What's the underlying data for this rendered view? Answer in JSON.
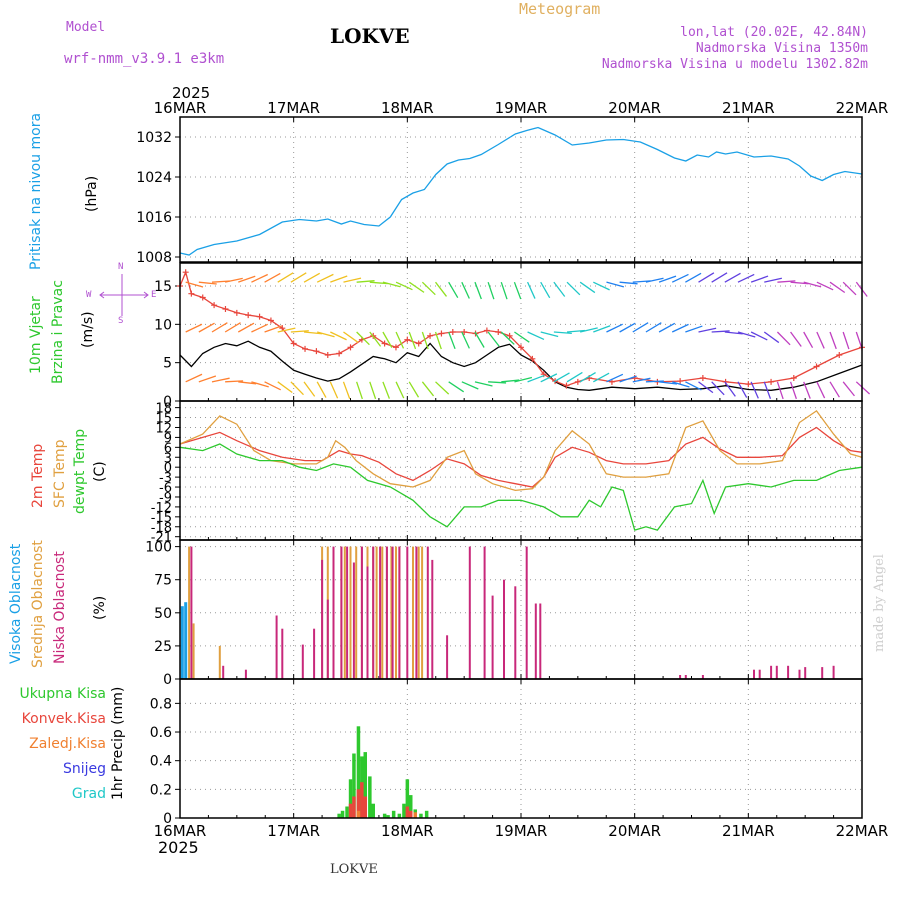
{
  "header": {
    "model_label": "Model",
    "model_name": "wrf-nmm_v3.9.1 e3km",
    "station": "LOKVE",
    "meteogram_label": "Meteogram",
    "coords": "lon,lat (20.02E, 42.84N)",
    "altitude": "Nadmorska Visina 1350m",
    "model_altitude": "Nadmorska Visina u modelu 1302.82m",
    "year_top": "2025",
    "year_bottom": "2025",
    "footer_station": "LOKVE",
    "credit": "made by Angel"
  },
  "colors": {
    "pressure": "#1aa0e6",
    "wind_speed": "#000000",
    "wind_gust": "#e8463c",
    "temp2m": "#e8463c",
    "sfc_temp": "#e0a040",
    "dewpt": "#2ec82e",
    "cloud_high": "#1aa0e6",
    "cloud_mid": "#e0a040",
    "cloud_low": "#c8287a",
    "precip_total": "#2ec82e",
    "precip_conv": "#e8463c",
    "precip_frozen": "#f08030",
    "precip_snow": "#3a3ae0",
    "precip_grad": "#20c8c8"
  },
  "chart_data": [
    {
      "type": "line",
      "panel": "pressure",
      "labels": [
        "Pritisak na nivou mora",
        "(hPa)"
      ],
      "x_ticks": [
        "16MAR",
        "17MAR",
        "18MAR",
        "19MAR",
        "20MAR",
        "21MAR",
        "22MAR"
      ],
      "xlim": [
        0,
        6
      ],
      "ylim": [
        1007,
        1036
      ],
      "yticks": [
        "1008",
        "1016",
        "1024",
        "1032"
      ],
      "series": [
        {
          "name": "MSLP",
          "x": [
            0,
            0.08,
            0.15,
            0.3,
            0.5,
            0.7,
            0.9,
            1.05,
            1.2,
            1.3,
            1.42,
            1.5,
            1.62,
            1.75,
            1.85,
            1.95,
            2.05,
            2.15,
            2.25,
            2.35,
            2.45,
            2.55,
            2.65,
            2.8,
            2.95,
            3.05,
            3.15,
            3.3,
            3.45,
            3.6,
            3.75,
            3.9,
            4.05,
            4.2,
            4.35,
            4.45,
            4.55,
            4.65,
            4.72,
            4.8,
            4.9,
            5.05,
            5.2,
            5.35,
            5.45,
            5.55,
            5.65,
            5.75,
            5.85,
            6.0
          ],
          "values": [
            1008.8,
            1008.4,
            1009.5,
            1010.5,
            1011.2,
            1012.5,
            1015.0,
            1015.5,
            1015.2,
            1015.6,
            1014.6,
            1015.2,
            1014.5,
            1014.2,
            1016.0,
            1019.5,
            1020.8,
            1021.5,
            1024.5,
            1026.6,
            1027.4,
            1027.7,
            1028.5,
            1030.5,
            1032.6,
            1033.3,
            1033.9,
            1032.4,
            1030.4,
            1030.8,
            1031.4,
            1031.5,
            1031.0,
            1029.5,
            1027.8,
            1027.2,
            1028.4,
            1028.0,
            1029.0,
            1028.6,
            1029.0,
            1028.0,
            1028.2,
            1027.6,
            1026.2,
            1024.2,
            1023.3,
            1024.5,
            1025.1,
            1024.6
          ]
        }
      ]
    },
    {
      "type": "line",
      "panel": "wind",
      "labels": [
        "10m Vjetar",
        "Brzina i Pravac",
        "(m/s)"
      ],
      "compass": [
        "N",
        "W",
        "E",
        "S"
      ],
      "xlim": [
        0,
        6
      ],
      "ylim": [
        0,
        18
      ],
      "yticks": [
        "0",
        "5",
        "10",
        "15"
      ],
      "series": [
        {
          "name": "speed",
          "x": [
            0,
            0.1,
            0.2,
            0.3,
            0.4,
            0.5,
            0.6,
            0.7,
            0.8,
            0.9,
            1.0,
            1.1,
            1.2,
            1.3,
            1.4,
            1.5,
            1.6,
            1.7,
            1.8,
            1.9,
            2.0,
            2.1,
            2.2,
            2.3,
            2.4,
            2.5,
            2.6,
            2.7,
            2.8,
            2.9,
            3.0,
            3.1,
            3.2,
            3.3,
            3.4,
            3.5,
            3.6,
            3.8,
            4.0,
            4.2,
            4.4,
            4.6,
            4.8,
            5.0,
            5.2,
            5.4,
            5.6,
            5.8,
            6.0
          ],
          "values": [
            6.0,
            4.5,
            6.2,
            7.0,
            7.5,
            7.2,
            7.8,
            7.0,
            6.5,
            5.2,
            4.0,
            3.5,
            3.0,
            2.6,
            2.9,
            3.8,
            4.8,
            5.8,
            5.5,
            5.0,
            6.3,
            5.8,
            7.5,
            5.8,
            5.0,
            4.5,
            5.0,
            6.0,
            7.0,
            7.4,
            6.0,
            5.2,
            4.0,
            2.5,
            1.8,
            1.5,
            1.4,
            1.8,
            1.6,
            1.8,
            1.5,
            1.6,
            2.0,
            1.5,
            1.4,
            1.8,
            2.5,
            3.6,
            4.7
          ]
        },
        {
          "name": "gust",
          "x": [
            0,
            0.05,
            0.1,
            0.2,
            0.3,
            0.4,
            0.5,
            0.6,
            0.7,
            0.8,
            0.9,
            1.0,
            1.1,
            1.2,
            1.3,
            1.4,
            1.5,
            1.6,
            1.7,
            1.8,
            1.9,
            2.0,
            2.1,
            2.2,
            2.3,
            2.4,
            2.5,
            2.6,
            2.7,
            2.8,
            2.9,
            3.0,
            3.1,
            3.2,
            3.3,
            3.4,
            3.5,
            3.6,
            3.8,
            4.0,
            4.2,
            4.4,
            4.6,
            4.8,
            5.0,
            5.2,
            5.4,
            5.6,
            5.8,
            6.0
          ],
          "values": [
            15.0,
            16.8,
            14.0,
            13.5,
            12.5,
            12.0,
            11.5,
            11.2,
            11.0,
            10.5,
            9.5,
            7.5,
            6.8,
            6.5,
            6.0,
            6.2,
            7.0,
            8.0,
            8.5,
            7.5,
            7.0,
            8.0,
            7.5,
            8.5,
            8.8,
            9.0,
            9.0,
            8.8,
            9.2,
            9.0,
            8.5,
            7.0,
            5.5,
            3.5,
            2.6,
            2.0,
            2.5,
            3.0,
            2.5,
            3.0,
            2.5,
            2.6,
            3.0,
            2.5,
            2.2,
            2.5,
            3.0,
            4.5,
            6.0,
            7.0
          ]
        }
      ]
    },
    {
      "type": "line",
      "panel": "temperature",
      "labels": [
        "2m Temp",
        "SFC Temp",
        "dewpt Temp",
        "(C)"
      ],
      "xlim": [
        0,
        6
      ],
      "ylim": [
        -22,
        20
      ],
      "yticks": [
        "18",
        "15",
        "12",
        "9",
        "6",
        "3",
        "0",
        "-3",
        "-6",
        "-9",
        "-12",
        "-15",
        "-18",
        "-21"
      ],
      "series": [
        {
          "name": "2m Temp",
          "x": [
            0,
            0.2,
            0.35,
            0.5,
            0.7,
            0.9,
            1.1,
            1.25,
            1.4,
            1.5,
            1.6,
            1.75,
            1.9,
            2.05,
            2.2,
            2.35,
            2.5,
            2.65,
            2.8,
            2.95,
            3.1,
            3.2,
            3.3,
            3.45,
            3.6,
            3.75,
            3.9,
            4.1,
            4.3,
            4.45,
            4.6,
            4.75,
            4.9,
            5.1,
            5.3,
            5.45,
            5.6,
            5.75,
            5.9,
            6.0
          ],
          "values": [
            7,
            9,
            10.5,
            8,
            5,
            3,
            2,
            2,
            5,
            4,
            3.5,
            1.5,
            -2,
            -4,
            -1,
            2.5,
            1,
            -2.5,
            -4,
            -5,
            -6,
            -3,
            3,
            6,
            4.5,
            2,
            1,
            1,
            2,
            7,
            9,
            5.5,
            3,
            3,
            3.5,
            9,
            12,
            8,
            5,
            4.5
          ]
        },
        {
          "name": "SFC Temp",
          "x": [
            0,
            0.2,
            0.35,
            0.5,
            0.65,
            0.8,
            1.0,
            1.2,
            1.3,
            1.37,
            1.45,
            1.55,
            1.7,
            1.85,
            2.05,
            2.2,
            2.35,
            2.5,
            2.6,
            2.75,
            2.95,
            3.1,
            3.2,
            3.3,
            3.45,
            3.6,
            3.75,
            3.9,
            4.1,
            4.3,
            4.45,
            4.6,
            4.75,
            4.9,
            5.1,
            5.3,
            5.45,
            5.6,
            5.75,
            5.9,
            6.0
          ],
          "values": [
            7,
            10,
            15.5,
            13,
            5,
            2,
            1,
            1,
            3,
            8,
            6,
            2,
            -2,
            -5,
            -6,
            -4,
            3,
            5,
            -2,
            -5,
            -7,
            -6.5,
            -3,
            5,
            11,
            7,
            -2,
            -3,
            -3,
            -2,
            12,
            14,
            5,
            1,
            1,
            2,
            13.5,
            17,
            10,
            4,
            3
          ]
        },
        {
          "name": "dewpt Temp",
          "x": [
            0,
            0.2,
            0.35,
            0.5,
            0.7,
            0.9,
            1.05,
            1.2,
            1.35,
            1.5,
            1.65,
            1.85,
            2.05,
            2.2,
            2.35,
            2.5,
            2.65,
            2.8,
            3.0,
            3.2,
            3.35,
            3.5,
            3.6,
            3.7,
            3.8,
            3.9,
            4.0,
            4.1,
            4.2,
            4.35,
            4.5,
            4.6,
            4.7,
            4.8,
            5.0,
            5.2,
            5.4,
            5.6,
            5.8,
            6.0
          ],
          "values": [
            6,
            5,
            7,
            4,
            2,
            2,
            0,
            -1,
            1,
            0,
            -4,
            -6,
            -10,
            -15,
            -18,
            -12,
            -12,
            -10,
            -10,
            -12,
            -15,
            -15,
            -10,
            -12,
            -6,
            -7,
            -19,
            -18,
            -19,
            -12,
            -11,
            -4,
            -14,
            -6,
            -5,
            -6,
            -4,
            -4,
            -1,
            0
          ]
        }
      ]
    },
    {
      "type": "bar",
      "panel": "cloud_cover",
      "labels": [
        "Visoka Oblacnost",
        "Srednja Oblacnost",
        "Niska Oblacnost",
        "(%)"
      ],
      "xlim": [
        0,
        6
      ],
      "ylim": [
        0,
        105
      ],
      "yticks": [
        "0",
        "25",
        "50",
        "75",
        "100"
      ],
      "series": [
        {
          "name": "Visoka",
          "x": [
            0.02,
            0.05
          ],
          "values": [
            55,
            58
          ]
        },
        {
          "name": "Srednja",
          "x": [
            0.08,
            0.12,
            0.35,
            1.25,
            1.3,
            1.42,
            1.45,
            1.5,
            1.55,
            1.6,
            1.65,
            1.7,
            1.73,
            1.78,
            1.82,
            1.86,
            1.9,
            1.93,
            2.05,
            2.1,
            2.13
          ],
          "values": [
            100,
            42,
            25,
            100,
            100,
            100,
            100,
            100,
            100,
            100,
            100,
            100,
            100,
            100,
            100,
            100,
            100,
            100,
            100,
            100,
            100
          ]
        },
        {
          "name": "Niska",
          "x": [
            0.1,
            0.38,
            0.58,
            0.85,
            0.9,
            1.08,
            1.18,
            1.25,
            1.3,
            1.35,
            1.42,
            1.47,
            1.53,
            1.6,
            1.65,
            1.7,
            1.76,
            1.82,
            1.87,
            1.93,
            2.0,
            2.08,
            2.18,
            2.22,
            2.35,
            2.55,
            2.68,
            2.75,
            2.85,
            2.95,
            3.05,
            3.13,
            3.17,
            4.4,
            4.45,
            4.6,
            5.05,
            5.1,
            5.2,
            5.25,
            5.35,
            5.45,
            5.5,
            5.65,
            5.75
          ],
          "values": [
            100,
            10,
            7,
            48,
            38,
            26,
            38,
            90,
            60,
            100,
            100,
            100,
            88,
            100,
            85,
            100,
            100,
            100,
            100,
            100,
            100,
            100,
            100,
            90,
            33,
            100,
            100,
            63,
            75,
            70,
            100,
            57,
            57,
            3,
            3,
            3,
            7,
            7,
            10,
            10,
            10,
            7,
            9,
            9,
            10
          ]
        }
      ]
    },
    {
      "type": "bar",
      "panel": "precipitation",
      "labels": [
        "Ukupna Kisa",
        "Konvek.Kisa",
        "Zaledj.Kisa",
        "Snijeg",
        "Grad",
        "1hr Precip (mm)"
      ],
      "xlim": [
        0,
        6
      ],
      "ylim": [
        0,
        0.97
      ],
      "yticks": [
        "0",
        "0.2",
        "0.4",
        "0.6",
        "0.8"
      ],
      "x_ticks": [
        "16MAR",
        "17MAR",
        "18MAR",
        "19MAR",
        "20MAR",
        "21MAR",
        "22MAR"
      ],
      "series": [
        {
          "name": "Ukupna Kisa",
          "x": [
            1.4,
            1.43,
            1.47,
            1.5,
            1.53,
            1.57,
            1.6,
            1.63,
            1.67,
            1.7,
            1.8,
            1.83,
            1.88,
            1.93,
            1.97,
            2.0,
            2.03,
            2.07,
            2.12,
            2.17
          ],
          "values": [
            0.03,
            0.05,
            0.08,
            0.27,
            0.45,
            0.64,
            0.43,
            0.46,
            0.29,
            0.1,
            0.03,
            0.02,
            0.05,
            0.03,
            0.1,
            0.27,
            0.16,
            0.06,
            0.03,
            0.05
          ]
        },
        {
          "name": "Konvek.Kisa",
          "x": [
            1.5,
            1.53,
            1.57,
            1.6,
            1.63,
            2.0,
            2.03
          ],
          "values": [
            0.1,
            0.15,
            0.2,
            0.25,
            0.15,
            0.08,
            0.05
          ]
        },
        {
          "name": "Zaledj.Kisa",
          "x": [
            1.57,
            2.07
          ],
          "values": [
            0.05,
            0.04
          ]
        },
        {
          "name": "Snijeg",
          "x": [],
          "values": []
        },
        {
          "name": "Grad",
          "x": [],
          "values": []
        }
      ]
    }
  ]
}
